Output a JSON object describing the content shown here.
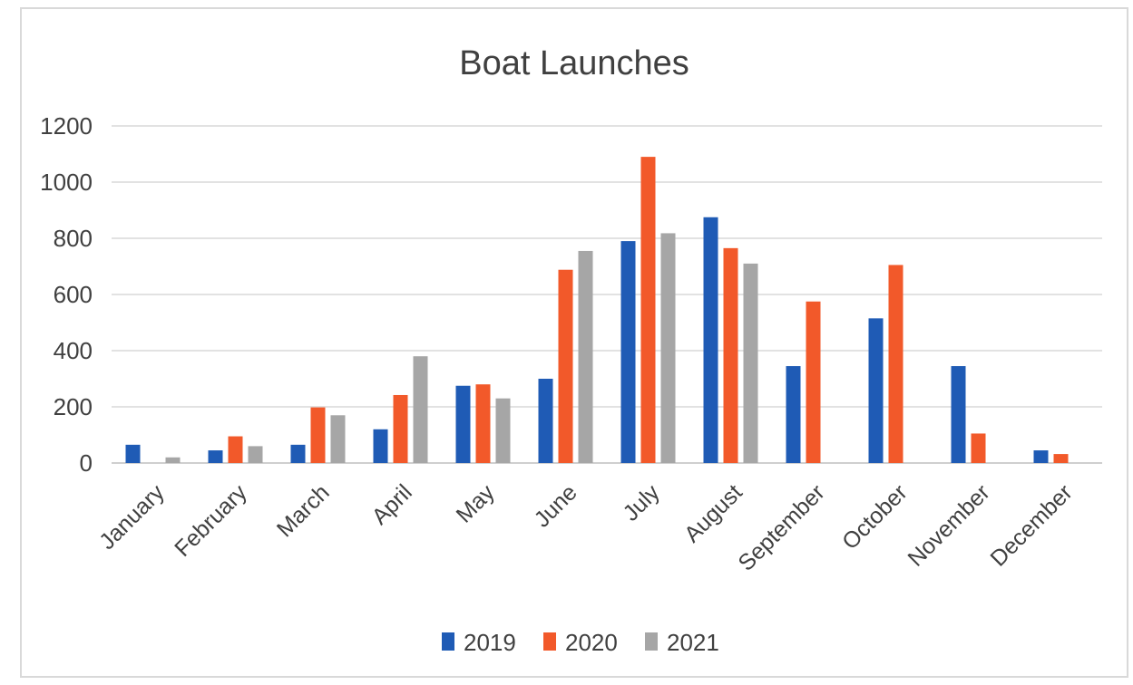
{
  "chart_data": {
    "type": "bar",
    "title": "Boat Launches",
    "xlabel": "",
    "ylabel": "",
    "categories": [
      "January",
      "February",
      "March",
      "April",
      "May",
      "June",
      "July",
      "August",
      "September",
      "October",
      "November",
      "December"
    ],
    "series": [
      {
        "name": "2019",
        "color": "#1f5bb5",
        "values": [
          65,
          45,
          65,
          120,
          275,
          300,
          790,
          875,
          345,
          515,
          345,
          45
        ]
      },
      {
        "name": "2020",
        "color": "#f2592a",
        "values": [
          0,
          95,
          198,
          242,
          280,
          688,
          1090,
          765,
          575,
          705,
          105,
          32
        ]
      },
      {
        "name": "2021",
        "color": "#a6a6a6",
        "values": [
          20,
          60,
          170,
          380,
          230,
          755,
          818,
          710,
          0,
          0,
          0,
          0
        ]
      }
    ],
    "ylim": [
      0,
      1200
    ],
    "yticks": [
      0,
      200,
      400,
      600,
      800,
      1000,
      1200
    ],
    "grid": true,
    "legend": "bottom"
  }
}
